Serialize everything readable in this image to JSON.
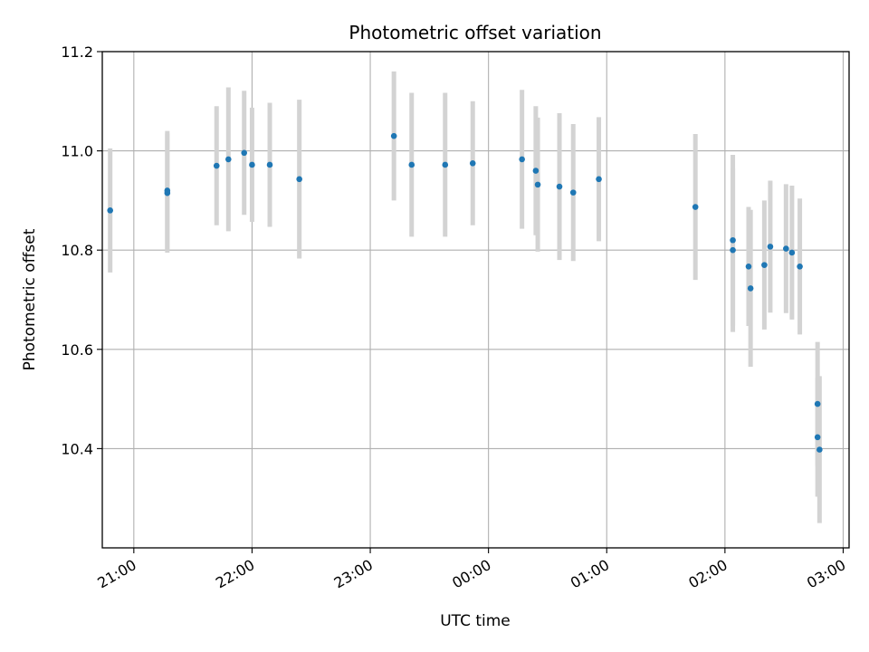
{
  "chart_data": {
    "type": "scatter",
    "title": "Photometric offset variation",
    "xlabel": "UTC time",
    "ylabel": "Photometric offset",
    "x_tick_labels": [
      "21:00",
      "22:00",
      "23:00",
      "00:00",
      "01:00",
      "02:00",
      "03:00"
    ],
    "y_tick_labels": [
      "10.4",
      "10.6",
      "10.8",
      "11.0",
      "11.2"
    ],
    "xlim": [
      "20:44",
      "03:03"
    ],
    "ylim": [
      10.2,
      11.2
    ],
    "grid": true,
    "colors": {
      "points": "#1f77b4",
      "errorbars": "#d3d3d3",
      "grid": "#b0b0b0"
    },
    "series": [
      {
        "points": [
          {
            "x": "20:48",
            "y": 10.88,
            "yerr": 0.125
          },
          {
            "x": "21:17",
            "y": 10.915,
            "yerr": 0.12
          },
          {
            "x": "21:17",
            "y": 10.92,
            "yerr": 0.12
          },
          {
            "x": "21:42",
            "y": 10.97,
            "yerr": 0.12
          },
          {
            "x": "21:48",
            "y": 10.983,
            "yerr": 0.145
          },
          {
            "x": "21:56",
            "y": 10.996,
            "yerr": 0.125
          },
          {
            "x": "22:00",
            "y": 10.972,
            "yerr": 0.115
          },
          {
            "x": "22:09",
            "y": 10.972,
            "yerr": 0.125
          },
          {
            "x": "22:24",
            "y": 10.943,
            "yerr": 0.16
          },
          {
            "x": "23:12",
            "y": 11.03,
            "yerr": 0.13
          },
          {
            "x": "23:21",
            "y": 10.972,
            "yerr": 0.145
          },
          {
            "x": "23:38",
            "y": 10.972,
            "yerr": 0.145
          },
          {
            "x": "23:52",
            "y": 10.975,
            "yerr": 0.125
          },
          {
            "x": "00:17",
            "y": 10.983,
            "yerr": 0.14
          },
          {
            "x": "00:24",
            "y": 10.96,
            "yerr": 0.13
          },
          {
            "x": "00:25",
            "y": 10.932,
            "yerr": 0.135
          },
          {
            "x": "00:36",
            "y": 10.928,
            "yerr": 0.148
          },
          {
            "x": "00:43",
            "y": 10.916,
            "yerr": 0.138
          },
          {
            "x": "00:56",
            "y": 10.943,
            "yerr": 0.125
          },
          {
            "x": "01:45",
            "y": 10.887,
            "yerr": 0.147
          },
          {
            "x": "02:04",
            "y": 10.82,
            "yerr": 0.172
          },
          {
            "x": "02:04",
            "y": 10.8,
            "yerr": 0.165
          },
          {
            "x": "02:12",
            "y": 10.767,
            "yerr": 0.12
          },
          {
            "x": "02:13",
            "y": 10.723,
            "yerr": 0.158
          },
          {
            "x": "02:20",
            "y": 10.77,
            "yerr": 0.13
          },
          {
            "x": "02:23",
            "y": 10.807,
            "yerr": 0.133
          },
          {
            "x": "02:31",
            "y": 10.803,
            "yerr": 0.13
          },
          {
            "x": "02:34",
            "y": 10.795,
            "yerr": 0.135
          },
          {
            "x": "02:38",
            "y": 10.767,
            "yerr": 0.137
          },
          {
            "x": "02:47",
            "y": 10.49,
            "yerr": 0.125
          },
          {
            "x": "02:47",
            "y": 10.423,
            "yerr": 0.12
          },
          {
            "x": "02:48",
            "y": 10.398,
            "yerr": 0.148
          }
        ]
      }
    ]
  }
}
